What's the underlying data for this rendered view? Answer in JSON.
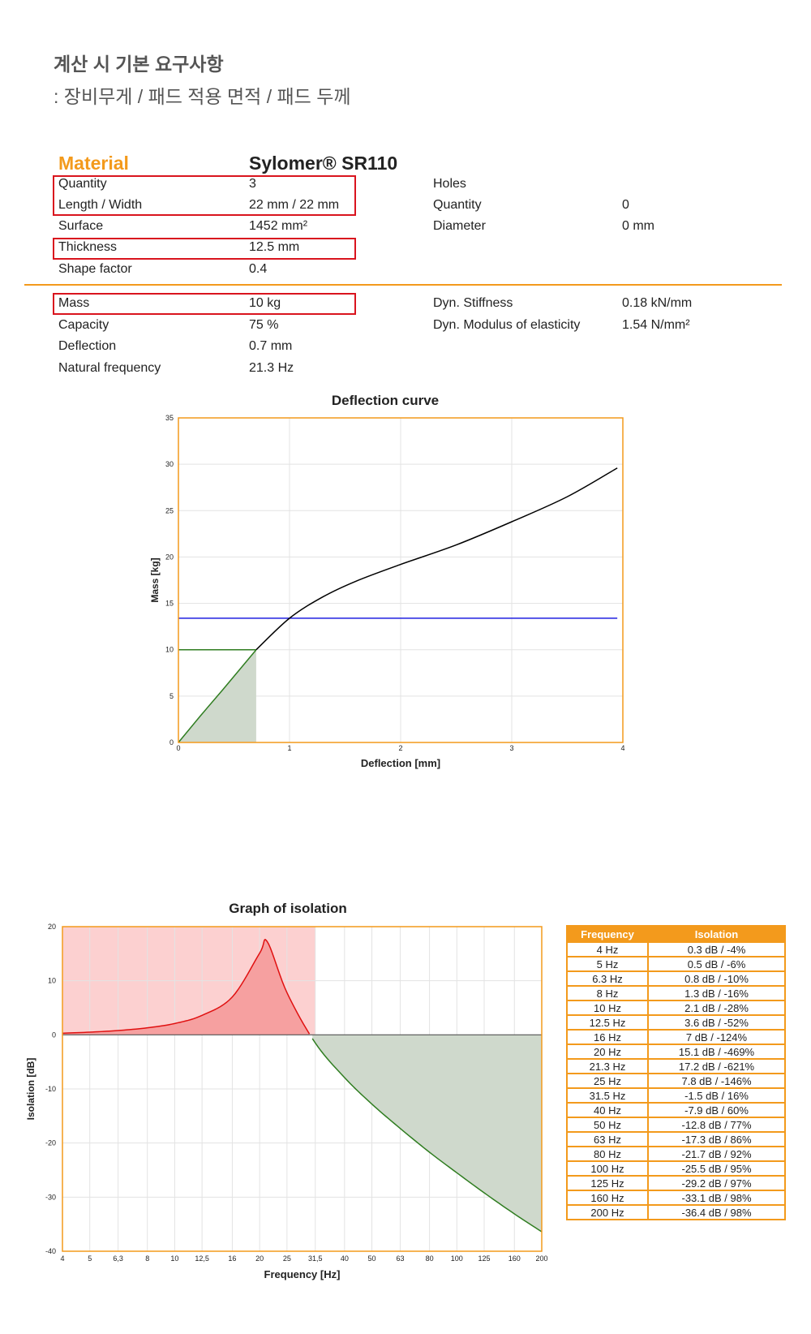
{
  "header": {
    "title": "계산 시 기본 요구사항",
    "subtitle": ": 장비무게 / 패드 적용 면적 / 패드 두께"
  },
  "material": {
    "label": "Material",
    "name": "Sylomer® SR110"
  },
  "specs_left": [
    {
      "label": "Quantity",
      "value": "3"
    },
    {
      "label": "Length / Width",
      "value": "22 mm / 22 mm"
    },
    {
      "label": "Surface",
      "value": "1452 mm²"
    },
    {
      "label": "Thickness",
      "value": "12.5 mm"
    },
    {
      "label": "Shape factor",
      "value": "0.4"
    }
  ],
  "holes": {
    "title": "Holes",
    "rows": [
      {
        "label": "Quantity",
        "value": "0"
      },
      {
        "label": "Diameter",
        "value": "0 mm"
      }
    ]
  },
  "results_left": [
    {
      "label": "Mass",
      "value": "10 kg"
    },
    {
      "label": "Capacity",
      "value": "75 %"
    },
    {
      "label": "Deflection",
      "value": "0.7 mm"
    },
    {
      "label": "Natural frequency",
      "value": "21.3 Hz"
    }
  ],
  "results_right": [
    {
      "label": "Dyn. Stiffness",
      "value": "0.18 kN/mm"
    },
    {
      "label": "Dyn. Modulus of elasticity",
      "value": "1.54 N/mm²"
    }
  ],
  "colors": {
    "accent": "#f39a1c",
    "highlight_box": "#d9141e",
    "curve_black": "#000000",
    "limit_blue": "#1f1fe0",
    "load_green": "#2f7d20",
    "green_fill": "#cfd9cc",
    "red_curve": "#e01010",
    "red_fill": "#f6a0a0",
    "red_band": "#fcd0d0"
  },
  "chart_data": [
    {
      "type": "line",
      "title": "Deflection curve",
      "xlabel": "Deflection [mm]",
      "ylabel": "Mass [kg]",
      "xlim": [
        0,
        4
      ],
      "ylim": [
        0,
        35
      ],
      "xticks": [
        "0",
        "1",
        "2",
        "3",
        "4"
      ],
      "yticks": [
        "0",
        "5",
        "10",
        "15",
        "20",
        "25",
        "30",
        "35"
      ],
      "grid": true,
      "series": [
        {
          "role": "deflection-curve",
          "color": "#000000",
          "x": [
            0,
            0.2,
            0.4,
            0.7,
            1.0,
            1.3,
            1.6,
            2.0,
            2.5,
            3.0,
            3.5,
            3.95
          ],
          "y": [
            0,
            2.9,
            5.7,
            10,
            13.4,
            15.7,
            17.4,
            19.2,
            21.3,
            23.8,
            26.5,
            29.6
          ]
        },
        {
          "role": "capacity-limit",
          "color": "#1f1fe0",
          "x": [
            0,
            3.95
          ],
          "y": [
            13.4,
            13.4
          ]
        },
        {
          "role": "operating-load",
          "color": "#2f7d20",
          "x": [
            0,
            0.7,
            0.7
          ],
          "y": [
            10,
            10,
            0
          ]
        }
      ]
    },
    {
      "type": "area",
      "title": "Graph of isolation",
      "xlabel": "Frequency [Hz]",
      "ylabel": "Isolation [dB]",
      "ylim": [
        -40,
        20
      ],
      "x_scale": "log",
      "xticks": [
        "4",
        "5",
        "6,3",
        "8",
        "10",
        "12,5",
        "16",
        "20",
        "25",
        "31,5",
        "40",
        "50",
        "63",
        "80",
        "100",
        "125",
        "160",
        "200"
      ],
      "yticks": [
        "20",
        "10",
        "0",
        "-10",
        "-20",
        "-30",
        "-40"
      ],
      "grid": true,
      "x": [
        4,
        5,
        6.3,
        8,
        10,
        12.5,
        16,
        20,
        21.3,
        25,
        31.5,
        40,
        50,
        63,
        80,
        100,
        125,
        160,
        200
      ],
      "y": [
        0.3,
        0.5,
        0.8,
        1.3,
        2.1,
        3.6,
        7,
        15.1,
        17.2,
        7.8,
        -1.5,
        -7.9,
        -12.8,
        -17.3,
        -21.7,
        -25.5,
        -29.2,
        -33.1,
        -36.4
      ]
    }
  ],
  "isolation_table": {
    "headers": [
      "Frequency",
      "Isolation"
    ],
    "rows": [
      [
        "4 Hz",
        "0.3 dB / -4%"
      ],
      [
        "5 Hz",
        "0.5 dB / -6%"
      ],
      [
        "6.3 Hz",
        "0.8 dB / -10%"
      ],
      [
        "8 Hz",
        "1.3 dB / -16%"
      ],
      [
        "10 Hz",
        "2.1 dB / -28%"
      ],
      [
        "12.5 Hz",
        "3.6 dB / -52%"
      ],
      [
        "16 Hz",
        "7 dB / -124%"
      ],
      [
        "20 Hz",
        "15.1 dB / -469%"
      ],
      [
        "21.3 Hz",
        "17.2 dB / -621%"
      ],
      [
        "25 Hz",
        "7.8 dB / -146%"
      ],
      [
        "31.5 Hz",
        "-1.5 dB / 16%"
      ],
      [
        "40 Hz",
        "-7.9 dB / 60%"
      ],
      [
        "50 Hz",
        "-12.8 dB / 77%"
      ],
      [
        "63 Hz",
        "-17.3 dB / 86%"
      ],
      [
        "80 Hz",
        "-21.7 dB / 92%"
      ],
      [
        "100 Hz",
        "-25.5 dB / 95%"
      ],
      [
        "125 Hz",
        "-29.2 dB / 97%"
      ],
      [
        "160 Hz",
        "-33.1 dB / 98%"
      ],
      [
        "200 Hz",
        "-36.4 dB / 98%"
      ]
    ]
  }
}
